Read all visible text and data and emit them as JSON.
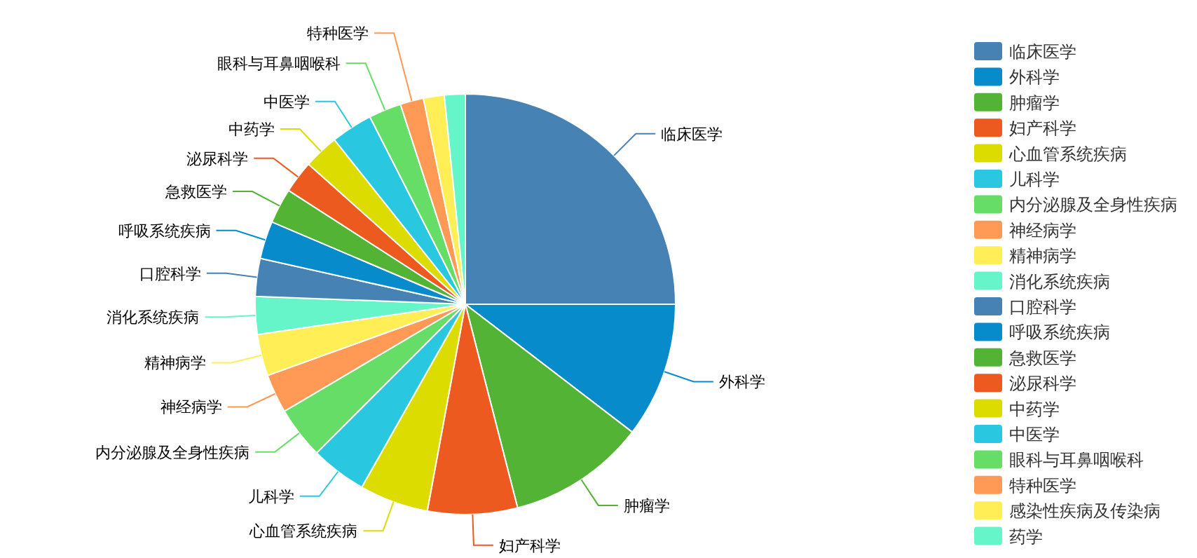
{
  "chart_data": {
    "type": "pie",
    "categories": [
      "临床医学",
      "外科学",
      "肿瘤学",
      "妇产科学",
      "心血管系统疾病",
      "儿科学",
      "内分泌腺及全身性疾病",
      "神经病学",
      "精神病学",
      "消化系统疾病",
      "口腔科学",
      "呼吸系统疾病",
      "急救医学",
      "泌尿科学",
      "中药学",
      "中医学",
      "眼科与耳鼻咽喉科",
      "特种医学",
      "感染性疾病及传染病",
      "药学"
    ],
    "values": [
      25,
      10.4,
      10.6,
      6.9,
      5.3,
      4.3,
      4,
      3,
      3.2,
      2.9,
      2.9,
      2.9,
      2.7,
      2.5,
      2.7,
      3.2,
      2.5,
      1.8,
      1.6,
      1.6
    ],
    "colors": [
      "#4682b4",
      "#078bca",
      "#52b334",
      "#ec5a20",
      "#dcdc00",
      "#29c8e0",
      "#66dd66",
      "#ff9955",
      "#ffee55",
      "#66f5c8",
      "#4682b4",
      "#078bca",
      "#52b334",
      "#ec5a20",
      "#dcdc00",
      "#29c8e0",
      "#66dd66",
      "#ff9955",
      "#ffee55",
      "#66f5c8"
    ],
    "legend": "right"
  }
}
